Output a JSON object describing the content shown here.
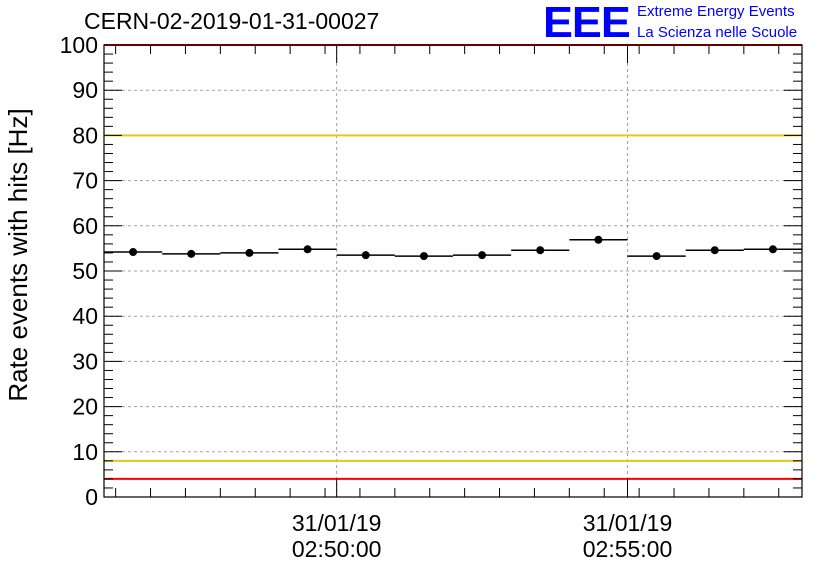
{
  "header": {
    "run_title": "CERN-02-2019-01-31-00027",
    "logo": {
      "mark": "EEE",
      "line1": "Extreme Energy Events",
      "line2": "La Scienza nelle Scuole",
      "color": "#0000ff"
    }
  },
  "chart_data": {
    "type": "scatter",
    "title": "",
    "ylabel": "Rate events with hits [Hz]",
    "xlabel": "",
    "ylim": [
      0,
      100
    ],
    "yticks": [
      0,
      10,
      20,
      30,
      40,
      50,
      60,
      70,
      80,
      90,
      100
    ],
    "xlim_seconds": [
      -140,
      1060
    ],
    "xticks": [
      {
        "seconds": 260,
        "date": "31/01/19",
        "time": "02:50:00"
      },
      {
        "seconds": 760,
        "date": "31/01/19",
        "time": "02:55:00"
      }
    ],
    "grid": true,
    "series": [
      {
        "name": "rate",
        "bin_width_seconds": 100,
        "x_seconds": [
          -90,
          10,
          110,
          210,
          310,
          410,
          510,
          610,
          710,
          810,
          910,
          1010
        ],
        "values": [
          54.2,
          53.8,
          54.0,
          54.8,
          53.5,
          53.3,
          53.5,
          54.6,
          56.9,
          53.3,
          54.6,
          54.8
        ],
        "marker_color": "#000000"
      }
    ],
    "reference_lines": [
      {
        "name": "upper-limit",
        "value": 100,
        "color": "#ff0000"
      },
      {
        "name": "upper-warning",
        "value": 80,
        "color": "#e6c619"
      },
      {
        "name": "lower-warning",
        "value": 8,
        "color": "#e6c619"
      },
      {
        "name": "lower-limit",
        "value": 4,
        "color": "#ff0000"
      }
    ]
  }
}
